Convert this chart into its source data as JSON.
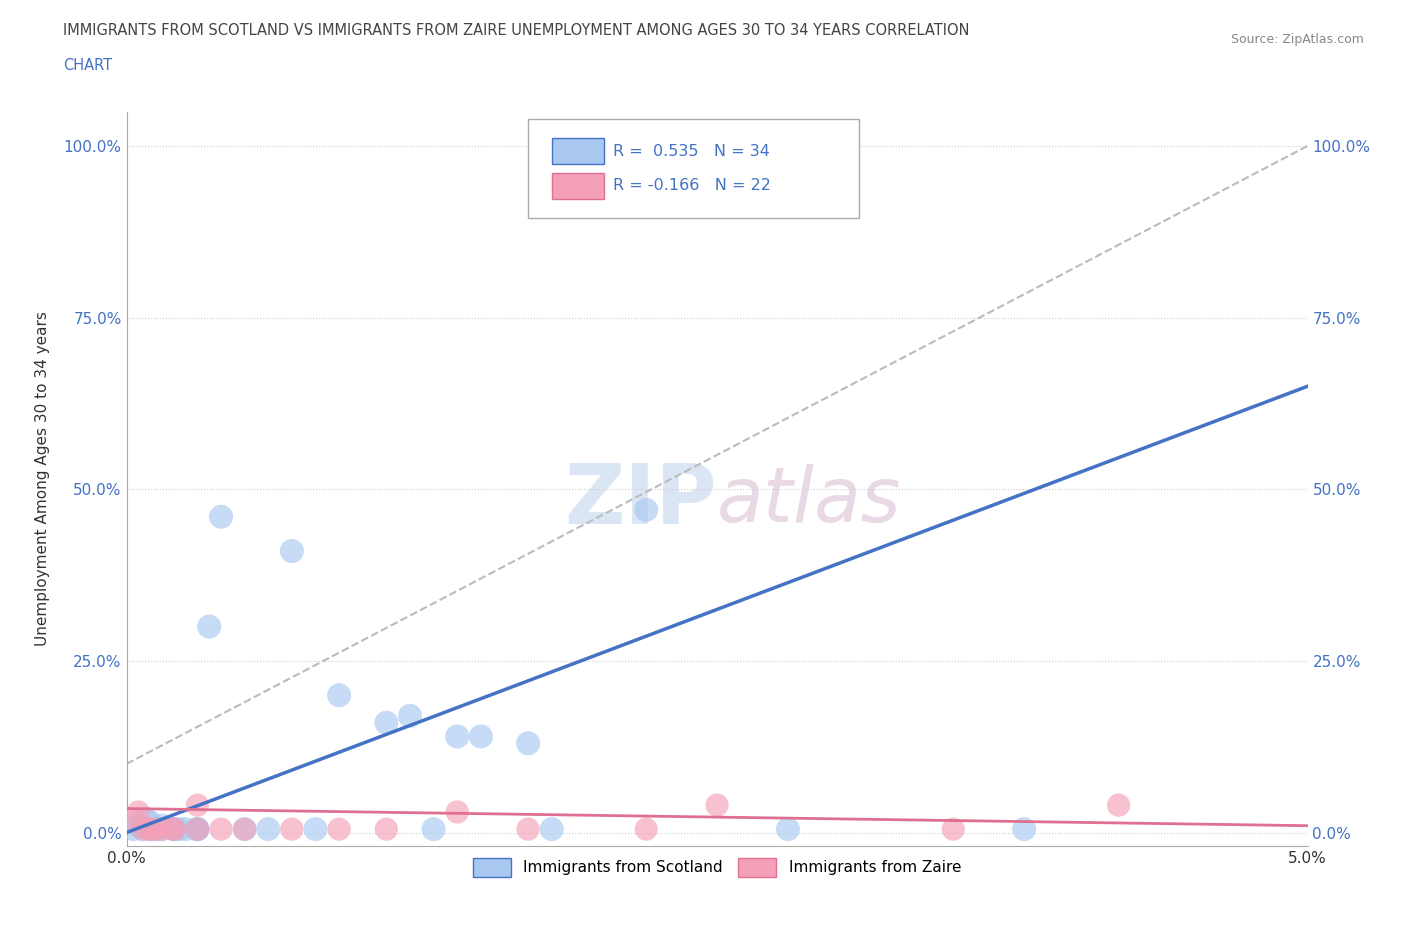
{
  "title_line1": "IMMIGRANTS FROM SCOTLAND VS IMMIGRANTS FROM ZAIRE UNEMPLOYMENT AMONG AGES 30 TO 34 YEARS CORRELATION",
  "title_line2": "CHART",
  "source_text": "Source: ZipAtlas.com",
  "ylabel": "Unemployment Among Ages 30 to 34 years",
  "ytick_vals": [
    0.0,
    0.25,
    0.5,
    0.75,
    1.0
  ],
  "ytick_labels": [
    "0.0%",
    "25.0%",
    "50.0%",
    "75.0%",
    "100.0%"
  ],
  "xtick_vals": [
    0.0,
    0.05
  ],
  "xtick_labels": [
    "0.0%",
    "5.0%"
  ],
  "xlim": [
    0.0,
    0.05
  ],
  "ylim": [
    -0.02,
    1.05
  ],
  "legend_label1": "Immigrants from Scotland",
  "legend_label2": "Immigrants from Zaire",
  "r_scotland": 0.535,
  "n_scotland": 34,
  "r_zaire": -0.166,
  "n_zaire": 22,
  "color_scotland": "#A8C8F0",
  "color_scotland_line": "#4472C4",
  "color_zaire": "#F4A0B8",
  "color_zaire_line": "#E07090",
  "background_color": "#FFFFFF",
  "watermark_color": "#C8D8F0",
  "scotland_x": [
    0.0003,
    0.0005,
    0.0007,
    0.0008,
    0.001,
    0.001,
    0.0012,
    0.0013,
    0.0015,
    0.0015,
    0.002,
    0.002,
    0.0022,
    0.0025,
    0.003,
    0.003,
    0.003,
    0.0035,
    0.004,
    0.005,
    0.006,
    0.007,
    0.008,
    0.009,
    0.011,
    0.012,
    0.013,
    0.014,
    0.015,
    0.017,
    0.018,
    0.022,
    0.028,
    0.038
  ],
  "scotland_y": [
    0.005,
    0.01,
    0.005,
    0.02,
    0.005,
    0.015,
    0.005,
    0.005,
    0.01,
    0.005,
    0.005,
    0.005,
    0.005,
    0.005,
    0.005,
    0.005,
    0.005,
    0.3,
    0.46,
    0.005,
    0.005,
    0.41,
    0.005,
    0.2,
    0.16,
    0.17,
    0.005,
    0.14,
    0.14,
    0.13,
    0.005,
    0.47,
    0.005,
    0.005
  ],
  "zaire_x": [
    0.0003,
    0.0005,
    0.0007,
    0.001,
    0.001,
    0.0012,
    0.0015,
    0.002,
    0.002,
    0.003,
    0.003,
    0.004,
    0.005,
    0.007,
    0.009,
    0.011,
    0.014,
    0.017,
    0.022,
    0.025,
    0.035,
    0.042
  ],
  "zaire_y": [
    0.02,
    0.03,
    0.005,
    0.005,
    0.005,
    0.005,
    0.005,
    0.005,
    0.005,
    0.005,
    0.04,
    0.005,
    0.005,
    0.005,
    0.005,
    0.005,
    0.03,
    0.005,
    0.005,
    0.04,
    0.005,
    0.04
  ]
}
